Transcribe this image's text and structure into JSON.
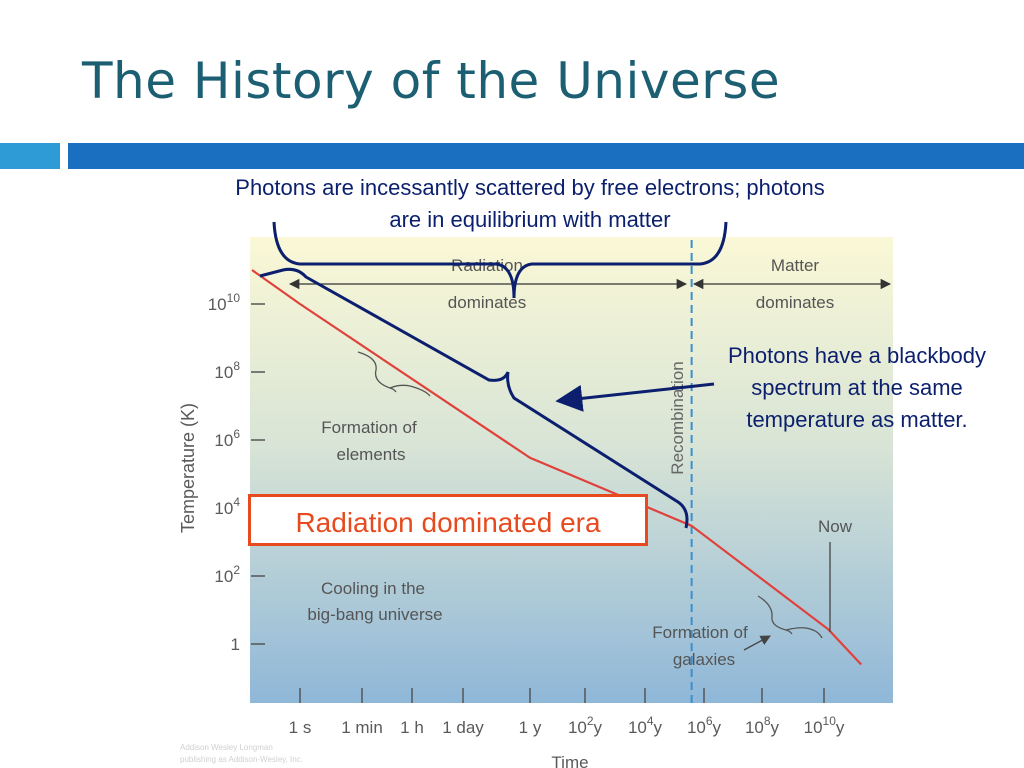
{
  "slide": {
    "title": "The History of the Universe",
    "annotation_top": "Photons are incessantly scattered by free electrons; photons are in equilibrium with matter",
    "annotation_right": "Photons have a blackbody spectrum at the same temperature as matter.",
    "era_label": "Radiation dominated era",
    "credit_line1": "Addison Wesley Longman",
    "credit_line2": "publishing as Addison-Wesley, Inc."
  },
  "colors": {
    "title": "#1c5f73",
    "accent_bar_light": "#2e9bd6",
    "accent_bar_dark": "#1b6fc0",
    "temperature_line": "#e0413b",
    "recombination_line": "#3a8fd0",
    "annotation_text": "#0b1f6e",
    "era_box": "#e64a1e"
  },
  "chart_data": {
    "type": "line",
    "title": "",
    "xlabel": "Time",
    "ylabel": "Temperature (K)",
    "x_scale": "log",
    "y_scale": "log",
    "x_ticks": [
      {
        "label": "1 s",
        "seconds": 1
      },
      {
        "label": "1 min",
        "seconds": 60
      },
      {
        "label": "1 h",
        "seconds": 3600
      },
      {
        "label": "1 day",
        "seconds": 86400
      },
      {
        "label": "1 y",
        "seconds": 31500000.0
      },
      {
        "label": "10",
        "sup": "2",
        "unit": "y",
        "seconds": 3150000000.0
      },
      {
        "label": "10",
        "sup": "4",
        "unit": "y",
        "seconds": 315000000000.0
      },
      {
        "label": "10",
        "sup": "6",
        "unit": "y",
        "seconds": 31500000000000.0
      },
      {
        "label": "10",
        "sup": "8",
        "unit": "y",
        "seconds": 3150000000000000.0
      },
      {
        "label": "10",
        "sup": "10",
        "unit": "y",
        "seconds": 3.15e+17
      }
    ],
    "y_ticks": [
      {
        "label": "10",
        "sup": "10",
        "kelvin": 10000000000.0
      },
      {
        "label": "10",
        "sup": "8",
        "kelvin": 100000000.0
      },
      {
        "label": "10",
        "sup": "6",
        "kelvin": 1000000.0
      },
      {
        "label": "10",
        "sup": "4",
        "kelvin": 10000.0
      },
      {
        "label": "10",
        "sup": "2",
        "kelvin": 100
      },
      {
        "label": "1",
        "sup": "",
        "kelvin": 1
      }
    ],
    "series": [
      {
        "points": [
          [
            0.003,
            100000000000.0
          ],
          [
            1,
            10000000000.0
          ],
          [
            31500000.0,
            300000.0
          ],
          [
            12000000000000.0,
            3000
          ],
          [
            4.3e+17,
            2.7
          ],
          [
            5e+18,
            0.25
          ]
        ]
      }
    ],
    "recombination_time_seconds": 12000000000000.0,
    "eras": [
      {
        "line1": "Radiation",
        "line2": "dominates"
      },
      {
        "line1": "Matter",
        "line2": "dominates"
      }
    ],
    "annotations": {
      "recombination": "Recombination",
      "formation_elements_1": "Formation of",
      "formation_elements_2": "elements",
      "cooling_1": "Cooling in the",
      "cooling_2": "big-bang universe",
      "now": "Now",
      "formation_galaxies_1": "Formation of",
      "formation_galaxies_2": "galaxies"
    },
    "legend": "none",
    "grid": false
  }
}
